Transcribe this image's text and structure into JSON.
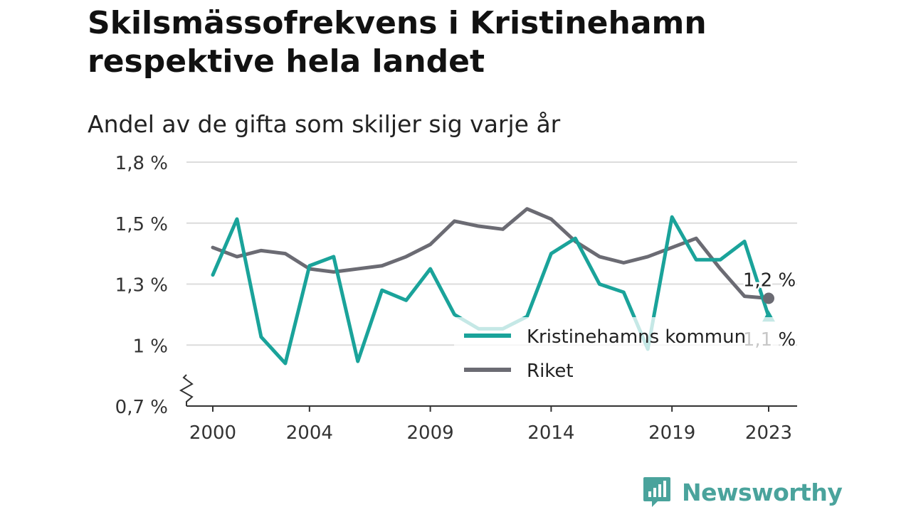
{
  "brand": {
    "name": "Newsworthy",
    "logo_icon": "bar-chart-speech-bubble-icon",
    "color": "#4aa39c"
  },
  "chart_data": {
    "type": "line",
    "title": "Skilsmässofrekvens i Kristinehamn respektive hela landet",
    "subtitle": "Andel av de gifta som skiljer sig varje år",
    "xlabel": "",
    "ylabel": "",
    "x": [
      2000,
      2001,
      2002,
      2003,
      2004,
      2005,
      2006,
      2007,
      2008,
      2009,
      2010,
      2011,
      2012,
      2013,
      2014,
      2015,
      2016,
      2017,
      2018,
      2019,
      2020,
      2021,
      2022,
      2023
    ],
    "x_ticks": [
      2000,
      2004,
      2009,
      2014,
      2019,
      2023
    ],
    "x_tick_labels": [
      "2000",
      "2004",
      "2009",
      "2014",
      "2019",
      "2023"
    ],
    "xlim": [
      2000,
      2023
    ],
    "ylim": [
      0.7,
      1.8
    ],
    "y_ticks": [
      0.7,
      1.0,
      1.3,
      1.5,
      1.8
    ],
    "y_tick_labels": [
      "0,7 %",
      "1 %",
      "1,3 %",
      "1,5 %",
      "1,8 %"
    ],
    "y_axis_break": true,
    "grid": true,
    "legend_position": "bottom-right",
    "series": [
      {
        "name": "Kristinehamns kommun",
        "color": "#1aa39a",
        "end_marker": "triangle",
        "end_label": "1,1 %",
        "values": [
          1.33,
          1.52,
          1.04,
          0.91,
          1.36,
          1.39,
          0.92,
          1.27,
          1.22,
          1.35,
          1.15,
          1.08,
          1.08,
          1.14,
          1.4,
          1.45,
          1.3,
          1.26,
          0.98,
          1.53,
          1.38,
          1.38,
          1.44,
          1.14
        ]
      },
      {
        "name": "Riket",
        "color": "#6b6b73",
        "end_marker": "circle",
        "end_label": "1,2 %",
        "values": [
          1.42,
          1.39,
          1.41,
          1.4,
          1.35,
          1.34,
          1.35,
          1.36,
          1.39,
          1.43,
          1.51,
          1.49,
          1.48,
          1.57,
          1.52,
          1.44,
          1.39,
          1.37,
          1.39,
          1.42,
          1.45,
          1.35,
          1.24,
          1.23
        ]
      }
    ]
  }
}
